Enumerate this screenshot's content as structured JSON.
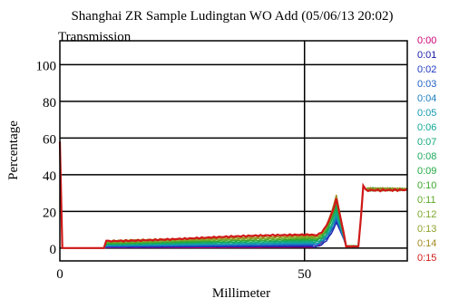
{
  "chart_data": {
    "type": "line",
    "title": "Shanghai ZR Sample Ludingtan WO Add (05/06/13 20:02)",
    "subtitle": "Transmission",
    "xlabel": "Millimeter",
    "ylabel": "Percentage",
    "xlim": [
      0,
      71
    ],
    "ylim": [
      -7,
      113
    ],
    "x_ticks": [
      0,
      50
    ],
    "y_ticks": [
      0,
      20,
      40,
      60,
      80,
      100
    ],
    "grid": true,
    "legend_position": "right",
    "series": [
      {
        "name": "0:00",
        "color": "#cc0077",
        "peak": 27
      },
      {
        "name": "0:01",
        "color": "#1a1aa8",
        "peak": 14
      },
      {
        "name": "0:02",
        "color": "#1f38c0",
        "peak": 15
      },
      {
        "name": "0:03",
        "color": "#1f5fc4",
        "peak": 16
      },
      {
        "name": "0:04",
        "color": "#1c7fbf",
        "peak": 17
      },
      {
        "name": "0:05",
        "color": "#1597b0",
        "peak": 18
      },
      {
        "name": "0:06",
        "color": "#12a596",
        "peak": 19
      },
      {
        "name": "0:07",
        "color": "#14a87a",
        "peak": 20
      },
      {
        "name": "0:08",
        "color": "#1aa85c",
        "peak": 22
      },
      {
        "name": "0:09",
        "color": "#22a840",
        "peak": 24
      },
      {
        "name": "0:10",
        "color": "#3aa82a",
        "peak": 25
      },
      {
        "name": "0:11",
        "color": "#5fa82a",
        "peak": 26
      },
      {
        "name": "0:12",
        "color": "#7ba82a",
        "peak": 27
      },
      {
        "name": "0:13",
        "color": "#8fa02a",
        "peak": 28
      },
      {
        "name": "0:14",
        "color": "#a08a22",
        "peak": 29
      },
      {
        "name": "0:15",
        "color": "#d01818",
        "peak": 27
      }
    ]
  }
}
